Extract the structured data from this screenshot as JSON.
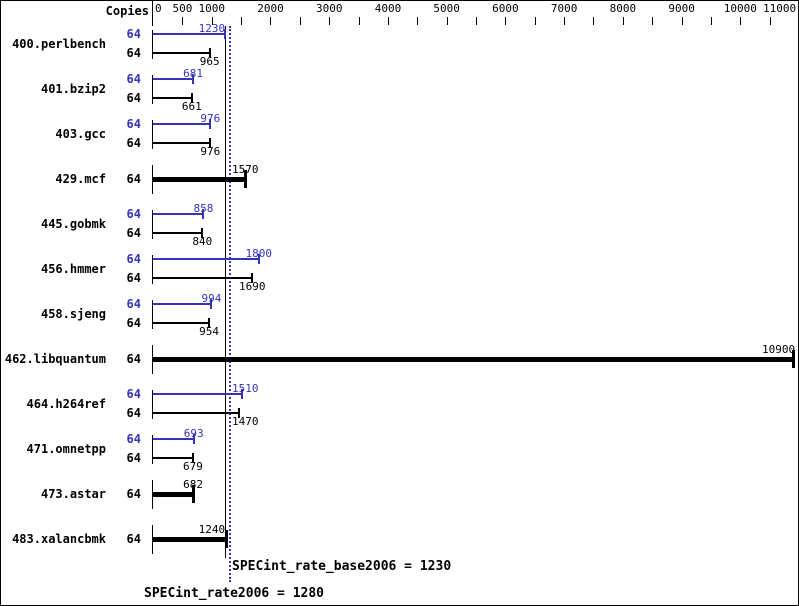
{
  "chart_data": {
    "type": "bar",
    "orientation": "horizontal",
    "copies_column_label": "Copies",
    "x_axis": {
      "min": 0,
      "max": 11000,
      "labeled_ticks": [
        0,
        500,
        1000,
        2000,
        3000,
        4000,
        5000,
        6000,
        7000,
        8000,
        9000,
        10000,
        11000
      ],
      "minor_tick_step": 500,
      "grid": false
    },
    "benchmarks": [
      {
        "name": "400.perlbench",
        "copies": "64",
        "peak": 1230,
        "base": 965,
        "single_bar": false
      },
      {
        "name": "401.bzip2",
        "copies": "64",
        "peak": 681,
        "base": 661,
        "single_bar": false
      },
      {
        "name": "403.gcc",
        "copies": "64",
        "peak": 976,
        "base": 976,
        "single_bar": false
      },
      {
        "name": "429.mcf",
        "copies": "64",
        "peak": null,
        "base": 1570,
        "single_bar": true
      },
      {
        "name": "445.gobmk",
        "copies": "64",
        "peak": 858,
        "base": 840,
        "single_bar": false
      },
      {
        "name": "456.hmmer",
        "copies": "64",
        "peak": 1800,
        "base": 1690,
        "single_bar": false
      },
      {
        "name": "458.sjeng",
        "copies": "64",
        "peak": 994,
        "base": 954,
        "single_bar": false
      },
      {
        "name": "462.libquantum",
        "copies": "64",
        "peak": null,
        "base": 10900,
        "single_bar": true
      },
      {
        "name": "464.h264ref",
        "copies": "64",
        "peak": 1510,
        "base": 1470,
        "single_bar": false
      },
      {
        "name": "471.omnetpp",
        "copies": "64",
        "peak": 693,
        "base": 679,
        "single_bar": false
      },
      {
        "name": "473.astar",
        "copies": "64",
        "peak": null,
        "base": 682,
        "single_bar": true
      },
      {
        "name": "483.xalancbmk",
        "copies": "64",
        "peak": null,
        "base": 1240,
        "single_bar": true
      }
    ],
    "reference_lines": [
      {
        "name": "SPECint_rate_base2006",
        "value": 1230,
        "style": "solid",
        "color": "#000000"
      },
      {
        "name": "SPECint_rate2006",
        "value": 1280,
        "style": "dotted",
        "color": "#3333bb"
      }
    ],
    "legend_position": "none"
  },
  "footer": {
    "base_result_label": "SPECint_rate_base2006 = 1230",
    "peak_result_label": "SPECint_rate2006 = 1280"
  },
  "colors": {
    "peak_bar": "#3333bb",
    "base_bar": "#000000",
    "background": "#ffffff"
  }
}
